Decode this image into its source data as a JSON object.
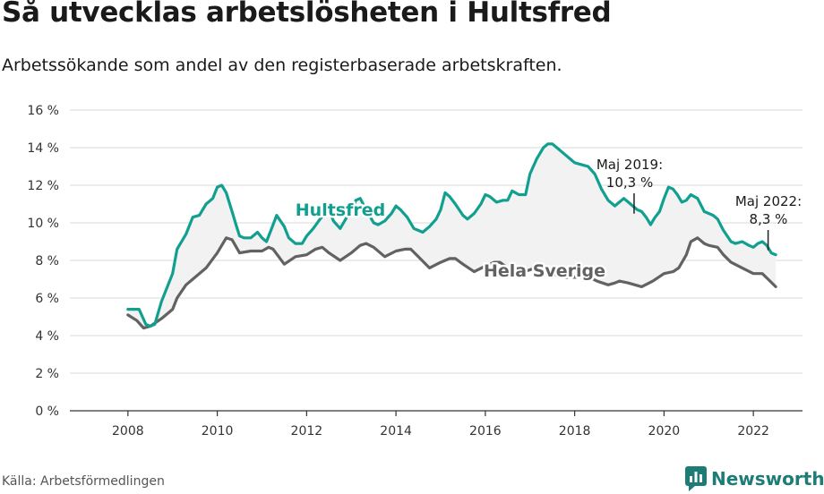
{
  "title": "Så utvecklas arbetslösheten i Hultsfred",
  "subtitle": "Arbetssökande som andel av den registerbaserade arbetskraften.",
  "source": "Källa: Arbetsförmedlingen",
  "logo": {
    "icon": "newsworthy-chart-bubble-icon",
    "text": "Newsworthy"
  },
  "colors": {
    "hultsfred": "#11a090",
    "sverige": "#626262",
    "gap_fill": "#f2f2f2",
    "grid": "#d9d9d9",
    "logo": "#1e7c76"
  },
  "chart_data": {
    "type": "line",
    "x_ticks": [
      2008,
      2010,
      2012,
      2014,
      2016,
      2018,
      2020,
      2022
    ],
    "y_ticks": [
      "0 %",
      "2 %",
      "4 %",
      "6 %",
      "8 %",
      "10 %",
      "12 %",
      "14 %",
      "16 %"
    ],
    "ylim": [
      0,
      16
    ],
    "xlim": [
      2006.7,
      2023.1
    ],
    "grid": "horizontal",
    "series": [
      {
        "name": "Hultsfred",
        "points": [
          [
            2008.0,
            5.4
          ],
          [
            2008.25,
            5.4
          ],
          [
            2008.4,
            4.6
          ],
          [
            2008.5,
            4.5
          ],
          [
            2008.6,
            4.6
          ],
          [
            2008.75,
            5.8
          ],
          [
            2009.0,
            7.3
          ],
          [
            2009.1,
            8.6
          ],
          [
            2009.3,
            9.4
          ],
          [
            2009.45,
            10.3
          ],
          [
            2009.6,
            10.4
          ],
          [
            2009.75,
            11.0
          ],
          [
            2009.9,
            11.3
          ],
          [
            2010.0,
            11.9
          ],
          [
            2010.1,
            12.0
          ],
          [
            2010.2,
            11.6
          ],
          [
            2010.33,
            10.6
          ],
          [
            2010.42,
            9.9
          ],
          [
            2010.5,
            9.3
          ],
          [
            2010.6,
            9.2
          ],
          [
            2010.75,
            9.2
          ],
          [
            2010.9,
            9.5
          ],
          [
            2011.0,
            9.2
          ],
          [
            2011.1,
            9.0
          ],
          [
            2011.2,
            9.6
          ],
          [
            2011.33,
            10.4
          ],
          [
            2011.5,
            9.8
          ],
          [
            2011.6,
            9.2
          ],
          [
            2011.75,
            8.9
          ],
          [
            2011.9,
            8.9
          ],
          [
            2012.0,
            9.3
          ],
          [
            2012.15,
            9.7
          ],
          [
            2012.3,
            10.2
          ],
          [
            2012.5,
            10.7
          ],
          [
            2012.6,
            10.1
          ],
          [
            2012.75,
            9.7
          ],
          [
            2012.9,
            10.3
          ],
          [
            2013.0,
            10.6
          ],
          [
            2013.1,
            11.2
          ],
          [
            2013.2,
            11.3
          ],
          [
            2013.33,
            10.7
          ],
          [
            2013.5,
            10.0
          ],
          [
            2013.6,
            9.9
          ],
          [
            2013.75,
            10.1
          ],
          [
            2013.9,
            10.5
          ],
          [
            2014.0,
            10.9
          ],
          [
            2014.1,
            10.7
          ],
          [
            2014.25,
            10.3
          ],
          [
            2014.4,
            9.7
          ],
          [
            2014.5,
            9.6
          ],
          [
            2014.6,
            9.5
          ],
          [
            2014.75,
            9.8
          ],
          [
            2014.9,
            10.2
          ],
          [
            2015.0,
            10.7
          ],
          [
            2015.1,
            11.6
          ],
          [
            2015.2,
            11.4
          ],
          [
            2015.33,
            11.0
          ],
          [
            2015.5,
            10.4
          ],
          [
            2015.6,
            10.2
          ],
          [
            2015.75,
            10.5
          ],
          [
            2015.9,
            11.0
          ],
          [
            2016.0,
            11.5
          ],
          [
            2016.1,
            11.4
          ],
          [
            2016.25,
            11.1
          ],
          [
            2016.4,
            11.2
          ],
          [
            2016.5,
            11.2
          ],
          [
            2016.6,
            11.7
          ],
          [
            2016.75,
            11.5
          ],
          [
            2016.9,
            11.5
          ],
          [
            2017.0,
            12.6
          ],
          [
            2017.15,
            13.4
          ],
          [
            2017.3,
            14.0
          ],
          [
            2017.4,
            14.2
          ],
          [
            2017.5,
            14.2
          ],
          [
            2017.6,
            14.0
          ],
          [
            2017.75,
            13.7
          ],
          [
            2017.9,
            13.4
          ],
          [
            2018.0,
            13.2
          ],
          [
            2018.15,
            13.1
          ],
          [
            2018.3,
            13.0
          ],
          [
            2018.45,
            12.6
          ],
          [
            2018.6,
            11.8
          ],
          [
            2018.75,
            11.2
          ],
          [
            2018.9,
            10.9
          ],
          [
            2019.0,
            11.1
          ],
          [
            2019.1,
            11.3
          ],
          [
            2019.2,
            11.1
          ],
          [
            2019.3,
            10.9
          ],
          [
            2019.4,
            10.7
          ],
          [
            2019.5,
            10.6
          ],
          [
            2019.6,
            10.3
          ],
          [
            2019.7,
            9.9
          ],
          [
            2019.8,
            10.3
          ],
          [
            2019.9,
            10.6
          ],
          [
            2020.0,
            11.3
          ],
          [
            2020.1,
            11.9
          ],
          [
            2020.2,
            11.8
          ],
          [
            2020.3,
            11.5
          ],
          [
            2020.4,
            11.1
          ],
          [
            2020.5,
            11.2
          ],
          [
            2020.6,
            11.5
          ],
          [
            2020.75,
            11.3
          ],
          [
            2020.9,
            10.6
          ],
          [
            2021.0,
            10.5
          ],
          [
            2021.1,
            10.4
          ],
          [
            2021.2,
            10.2
          ],
          [
            2021.33,
            9.6
          ],
          [
            2021.5,
            9.0
          ],
          [
            2021.6,
            8.9
          ],
          [
            2021.75,
            9.0
          ],
          [
            2021.9,
            8.8
          ],
          [
            2022.0,
            8.7
          ],
          [
            2022.1,
            8.9
          ],
          [
            2022.2,
            9.0
          ],
          [
            2022.3,
            8.8
          ],
          [
            2022.4,
            8.4
          ],
          [
            2022.5,
            8.3
          ]
        ]
      },
      {
        "name": "Hela Sverige",
        "points": [
          [
            2008.0,
            5.1
          ],
          [
            2008.2,
            4.8
          ],
          [
            2008.35,
            4.4
          ],
          [
            2008.5,
            4.5
          ],
          [
            2008.75,
            4.9
          ],
          [
            2009.0,
            5.4
          ],
          [
            2009.1,
            6.0
          ],
          [
            2009.3,
            6.7
          ],
          [
            2009.5,
            7.1
          ],
          [
            2009.75,
            7.6
          ],
          [
            2010.0,
            8.4
          ],
          [
            2010.1,
            8.8
          ],
          [
            2010.2,
            9.2
          ],
          [
            2010.33,
            9.1
          ],
          [
            2010.5,
            8.4
          ],
          [
            2010.75,
            8.5
          ],
          [
            2011.0,
            8.5
          ],
          [
            2011.15,
            8.7
          ],
          [
            2011.25,
            8.6
          ],
          [
            2011.5,
            7.8
          ],
          [
            2011.75,
            8.2
          ],
          [
            2012.0,
            8.3
          ],
          [
            2012.2,
            8.6
          ],
          [
            2012.35,
            8.7
          ],
          [
            2012.5,
            8.4
          ],
          [
            2012.75,
            8.0
          ],
          [
            2013.0,
            8.4
          ],
          [
            2013.2,
            8.8
          ],
          [
            2013.33,
            8.9
          ],
          [
            2013.5,
            8.7
          ],
          [
            2013.75,
            8.2
          ],
          [
            2014.0,
            8.5
          ],
          [
            2014.2,
            8.6
          ],
          [
            2014.33,
            8.6
          ],
          [
            2014.5,
            8.2
          ],
          [
            2014.75,
            7.6
          ],
          [
            2015.0,
            7.9
          ],
          [
            2015.2,
            8.1
          ],
          [
            2015.33,
            8.1
          ],
          [
            2015.5,
            7.8
          ],
          [
            2015.75,
            7.4
          ],
          [
            2016.0,
            7.7
          ],
          [
            2016.2,
            7.9
          ],
          [
            2016.33,
            7.9
          ],
          [
            2016.5,
            7.6
          ],
          [
            2016.75,
            7.3
          ],
          [
            2017.0,
            7.5
          ],
          [
            2017.2,
            7.7
          ],
          [
            2017.33,
            7.6
          ],
          [
            2017.5,
            7.3
          ],
          [
            2017.75,
            7.1
          ],
          [
            2018.0,
            7.1
          ],
          [
            2018.2,
            7.1
          ],
          [
            2018.33,
            7.1
          ],
          [
            2018.5,
            6.9
          ],
          [
            2018.75,
            6.7
          ],
          [
            2018.9,
            6.8
          ],
          [
            2019.0,
            6.9
          ],
          [
            2019.2,
            6.8
          ],
          [
            2019.35,
            6.7
          ],
          [
            2019.5,
            6.6
          ],
          [
            2019.75,
            6.9
          ],
          [
            2020.0,
            7.3
          ],
          [
            2020.2,
            7.4
          ],
          [
            2020.33,
            7.6
          ],
          [
            2020.5,
            8.3
          ],
          [
            2020.6,
            9.0
          ],
          [
            2020.75,
            9.2
          ],
          [
            2020.9,
            8.9
          ],
          [
            2021.0,
            8.8
          ],
          [
            2021.2,
            8.7
          ],
          [
            2021.33,
            8.3
          ],
          [
            2021.5,
            7.9
          ],
          [
            2021.75,
            7.6
          ],
          [
            2022.0,
            7.3
          ],
          [
            2022.2,
            7.3
          ],
          [
            2022.33,
            7.0
          ],
          [
            2022.5,
            6.6
          ]
        ]
      }
    ],
    "annotations": [
      {
        "label": "Hultsfred"
      },
      {
        "label": "Hela Sverige"
      },
      {
        "line1": "Maj 2019:",
        "line2": "10,3 %",
        "x": 2019.33,
        "y": 10.3
      },
      {
        "line1": "Maj 2022:",
        "line2": "8,3 %",
        "x": 2022.33,
        "y": 8.3
      }
    ]
  }
}
